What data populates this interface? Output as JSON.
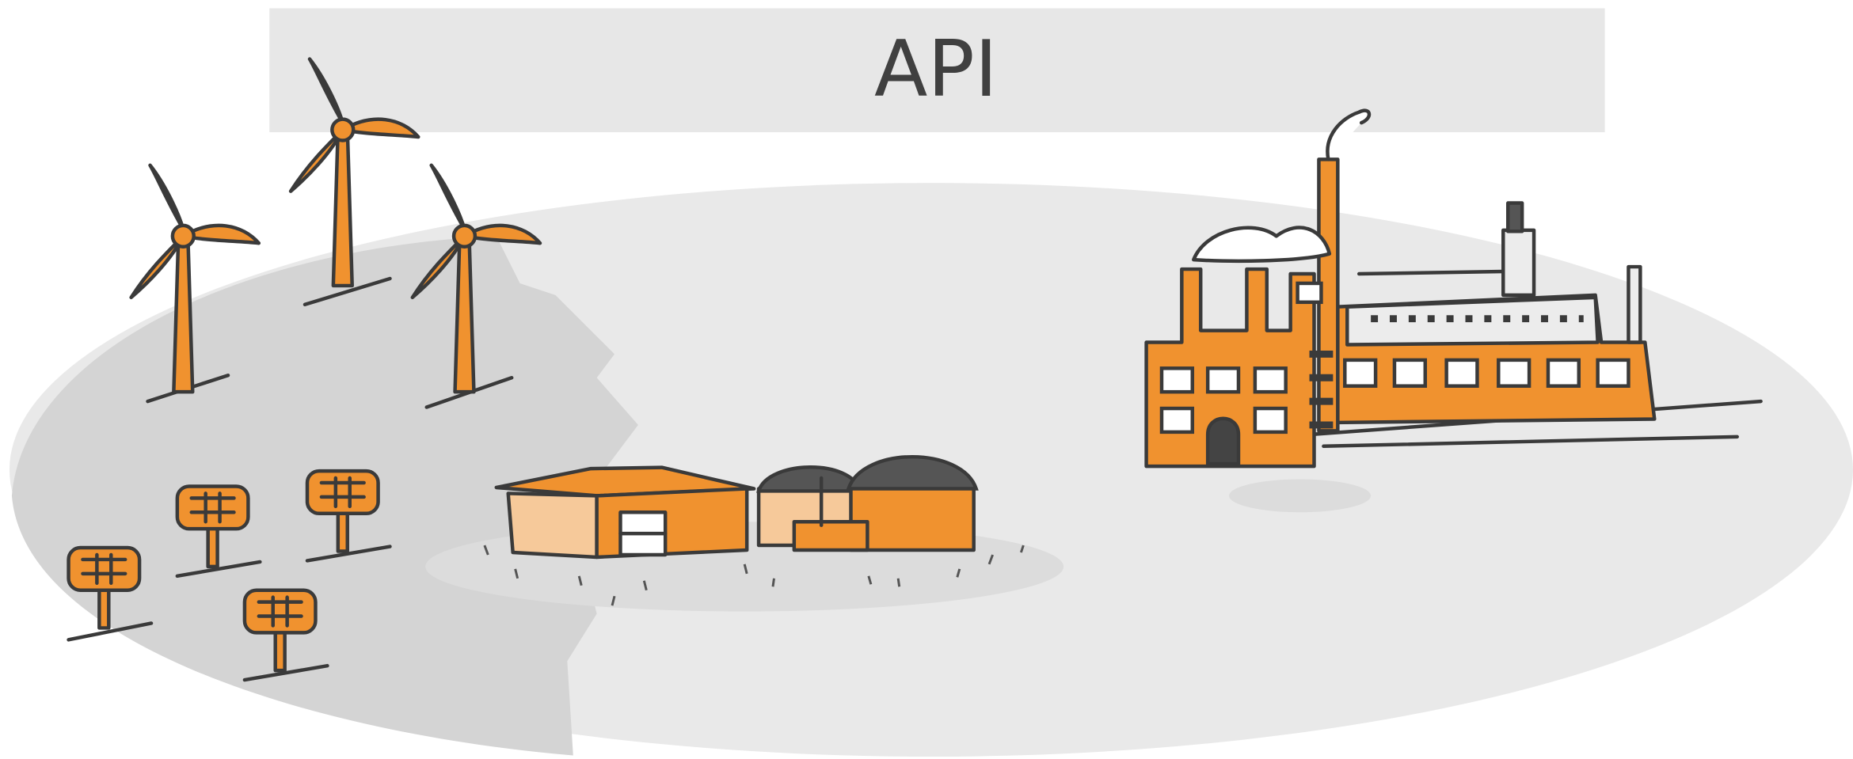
{
  "banner": {
    "title": "API"
  }
}
